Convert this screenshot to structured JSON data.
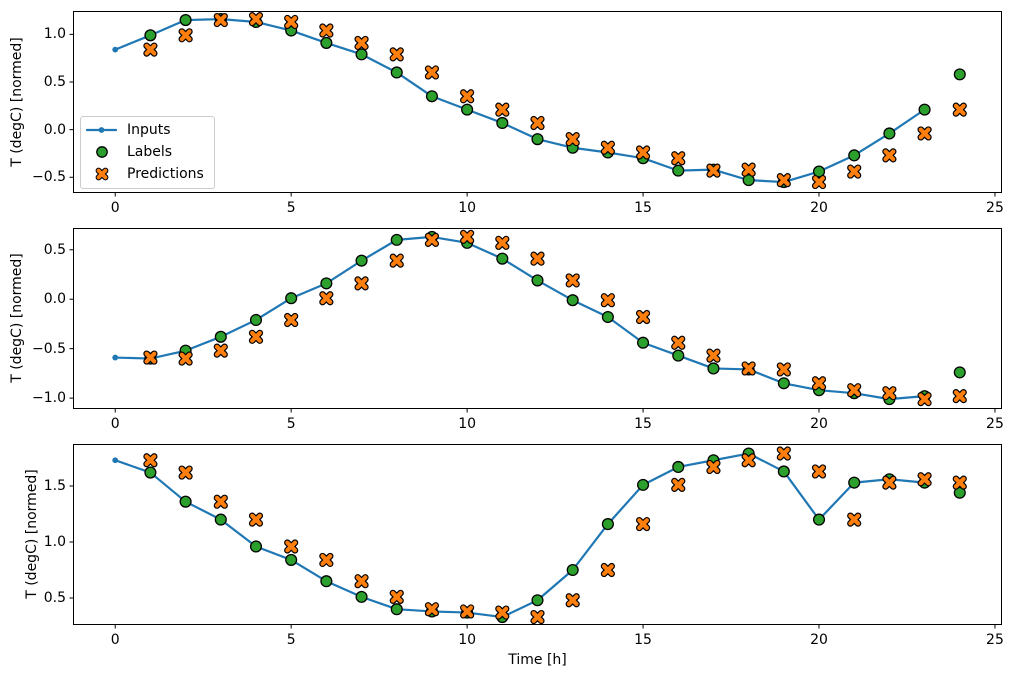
{
  "figure": {
    "background": "#ffffff",
    "kind": "matplotlib-3-row-time-series-figure"
  },
  "legend": {
    "items": [
      {
        "label": "Inputs"
      },
      {
        "label": "Labels"
      },
      {
        "label": "Predictions"
      }
    ]
  },
  "colors": {
    "inputs_blue": "#1f77b4",
    "labels_green": "#2ca02c",
    "predictions_orange": "#ff7f0e",
    "marker_edge": "#000000",
    "axis": "#000000",
    "legend_border": "#cccccc"
  },
  "chart_data": [
    {
      "type": "line",
      "title": "",
      "xlabel": "",
      "ylabel": "T (degC) [normed]",
      "xlim": [
        -1.2,
        25.2
      ],
      "ylim": [
        -0.665,
        1.245
      ],
      "xticks": [
        0,
        5,
        10,
        15,
        20,
        25
      ],
      "xticklabels": [
        "0",
        "5",
        "10",
        "15",
        "20",
        "25"
      ],
      "yticks": [
        1.0,
        0.5,
        0.0,
        -0.5
      ],
      "yticklabels": [
        "1.0",
        "0.5",
        "0.0",
        "−0.5"
      ],
      "grid": false,
      "legend_position": "center left",
      "series": [
        {
          "name": "Inputs",
          "marker": "dot-line",
          "color": "#1f77b4",
          "x": [
            0,
            1,
            2,
            3,
            4,
            5,
            6,
            7,
            8,
            9,
            10,
            11,
            12,
            13,
            14,
            15,
            16,
            17,
            18,
            19,
            20,
            21,
            22,
            23
          ],
          "y": [
            0.84,
            0.99,
            1.15,
            1.16,
            1.13,
            1.04,
            0.91,
            0.79,
            0.6,
            0.35,
            0.21,
            0.07,
            -0.1,
            -0.19,
            -0.24,
            -0.3,
            -0.43,
            -0.42,
            -0.53,
            -0.55,
            -0.44,
            -0.27,
            -0.04,
            0.21
          ]
        },
        {
          "name": "Labels",
          "marker": "circle",
          "color": "#2ca02c",
          "edge": "#000000",
          "x": [
            1,
            2,
            3,
            4,
            5,
            6,
            7,
            8,
            9,
            10,
            11,
            12,
            13,
            14,
            15,
            16,
            17,
            18,
            19,
            20,
            21,
            22,
            23,
            24
          ],
          "y": [
            0.99,
            1.15,
            1.16,
            1.13,
            1.04,
            0.91,
            0.79,
            0.6,
            0.35,
            0.21,
            0.07,
            -0.1,
            -0.19,
            -0.24,
            -0.3,
            -0.43,
            -0.42,
            -0.53,
            -0.55,
            -0.44,
            -0.27,
            -0.04,
            0.21,
            0.58
          ]
        },
        {
          "name": "Predictions",
          "marker": "X",
          "color": "#ff7f0e",
          "edge": "#000000",
          "x": [
            1,
            2,
            3,
            4,
            5,
            6,
            7,
            8,
            9,
            10,
            11,
            12,
            13,
            14,
            15,
            16,
            17,
            18,
            19,
            20,
            21,
            22,
            23,
            24
          ],
          "y": [
            0.84,
            0.99,
            1.15,
            1.16,
            1.13,
            1.04,
            0.91,
            0.79,
            0.6,
            0.35,
            0.21,
            0.07,
            -0.1,
            -0.19,
            -0.24,
            -0.3,
            -0.43,
            -0.42,
            -0.53,
            -0.55,
            -0.44,
            -0.27,
            -0.04,
            0.21
          ]
        }
      ]
    },
    {
      "type": "line",
      "title": "",
      "xlabel": "",
      "ylabel": "T (degC) [normed]",
      "xlim": [
        -1.2,
        25.2
      ],
      "ylim": [
        -1.11,
        0.72
      ],
      "xticks": [
        0,
        5,
        10,
        15,
        20,
        25
      ],
      "xticklabels": [
        "0",
        "5",
        "10",
        "15",
        "20",
        "25"
      ],
      "yticks": [
        0.5,
        0.0,
        -0.5,
        -1.0
      ],
      "yticklabels": [
        "0.5",
        "0.0",
        "−0.5",
        "−1.0"
      ],
      "grid": false,
      "series": [
        {
          "name": "Inputs",
          "marker": "dot-line",
          "color": "#1f77b4",
          "x": [
            0,
            1,
            2,
            3,
            4,
            5,
            6,
            7,
            8,
            9,
            10,
            11,
            12,
            13,
            14,
            15,
            16,
            17,
            18,
            19,
            20,
            21,
            22,
            23
          ],
          "y": [
            -0.59,
            -0.6,
            -0.52,
            -0.38,
            -0.21,
            0.01,
            0.16,
            0.39,
            0.6,
            0.63,
            0.57,
            0.41,
            0.19,
            -0.01,
            -0.18,
            -0.44,
            -0.57,
            -0.7,
            -0.71,
            -0.85,
            -0.92,
            -0.95,
            -1.01,
            -0.98
          ]
        },
        {
          "name": "Labels",
          "marker": "circle",
          "color": "#2ca02c",
          "edge": "#000000",
          "x": [
            1,
            2,
            3,
            4,
            5,
            6,
            7,
            8,
            9,
            10,
            11,
            12,
            13,
            14,
            15,
            16,
            17,
            18,
            19,
            20,
            21,
            22,
            23,
            24
          ],
          "y": [
            -0.6,
            -0.52,
            -0.38,
            -0.21,
            0.01,
            0.16,
            0.39,
            0.6,
            0.63,
            0.57,
            0.41,
            0.19,
            -0.01,
            -0.18,
            -0.44,
            -0.57,
            -0.7,
            -0.71,
            -0.85,
            -0.92,
            -0.95,
            -1.01,
            -0.98,
            -0.74
          ]
        },
        {
          "name": "Predictions",
          "marker": "X",
          "color": "#ff7f0e",
          "edge": "#000000",
          "x": [
            1,
            2,
            3,
            4,
            5,
            6,
            7,
            8,
            9,
            10,
            11,
            12,
            13,
            14,
            15,
            16,
            17,
            18,
            19,
            20,
            21,
            22,
            23,
            24
          ],
          "y": [
            -0.59,
            -0.6,
            -0.52,
            -0.38,
            -0.21,
            0.01,
            0.16,
            0.39,
            0.6,
            0.63,
            0.57,
            0.41,
            0.19,
            -0.01,
            -0.18,
            -0.44,
            -0.57,
            -0.7,
            -0.71,
            -0.85,
            -0.92,
            -0.95,
            -1.01,
            -0.98
          ]
        }
      ]
    },
    {
      "type": "line",
      "title": "",
      "xlabel": "Time [h]",
      "ylabel": "T (degC) [normed]",
      "xlim": [
        -1.2,
        25.2
      ],
      "ylim": [
        0.259,
        1.875
      ],
      "xticks": [
        0,
        5,
        10,
        15,
        20,
        25
      ],
      "xticklabels": [
        "0",
        "5",
        "10",
        "15",
        "20",
        "25"
      ],
      "yticks": [
        1.5,
        1.0,
        0.5
      ],
      "yticklabels": [
        "1.5",
        "1.0",
        "0.5"
      ],
      "grid": false,
      "series": [
        {
          "name": "Inputs",
          "marker": "dot-line",
          "color": "#1f77b4",
          "x": [
            0,
            1,
            2,
            3,
            4,
            5,
            6,
            7,
            8,
            9,
            10,
            11,
            12,
            13,
            14,
            15,
            16,
            17,
            18,
            19,
            20,
            21,
            22,
            23
          ],
          "y": [
            1.73,
            1.62,
            1.36,
            1.2,
            0.96,
            0.84,
            0.65,
            0.51,
            0.4,
            0.38,
            0.37,
            0.33,
            0.48,
            0.75,
            1.16,
            1.51,
            1.67,
            1.73,
            1.79,
            1.63,
            1.2,
            1.53,
            1.56,
            1.53
          ]
        },
        {
          "name": "Labels",
          "marker": "circle",
          "color": "#2ca02c",
          "edge": "#000000",
          "x": [
            1,
            2,
            3,
            4,
            5,
            6,
            7,
            8,
            9,
            10,
            11,
            12,
            13,
            14,
            15,
            16,
            17,
            18,
            19,
            20,
            21,
            22,
            23,
            24
          ],
          "y": [
            1.62,
            1.36,
            1.2,
            0.96,
            0.84,
            0.65,
            0.51,
            0.4,
            0.38,
            0.37,
            0.33,
            0.48,
            0.75,
            1.16,
            1.51,
            1.67,
            1.73,
            1.79,
            1.63,
            1.2,
            1.53,
            1.56,
            1.53,
            1.44
          ]
        },
        {
          "name": "Predictions",
          "marker": "X",
          "color": "#ff7f0e",
          "edge": "#000000",
          "x": [
            1,
            2,
            3,
            4,
            5,
            6,
            7,
            8,
            9,
            10,
            11,
            12,
            13,
            14,
            15,
            16,
            17,
            18,
            19,
            20,
            21,
            22,
            23,
            24
          ],
          "y": [
            1.73,
            1.62,
            1.36,
            1.2,
            0.96,
            0.84,
            0.65,
            0.51,
            0.4,
            0.38,
            0.37,
            0.33,
            0.48,
            0.75,
            1.16,
            1.51,
            1.67,
            1.73,
            1.79,
            1.63,
            1.2,
            1.53,
            1.56,
            1.53
          ]
        }
      ]
    }
  ]
}
